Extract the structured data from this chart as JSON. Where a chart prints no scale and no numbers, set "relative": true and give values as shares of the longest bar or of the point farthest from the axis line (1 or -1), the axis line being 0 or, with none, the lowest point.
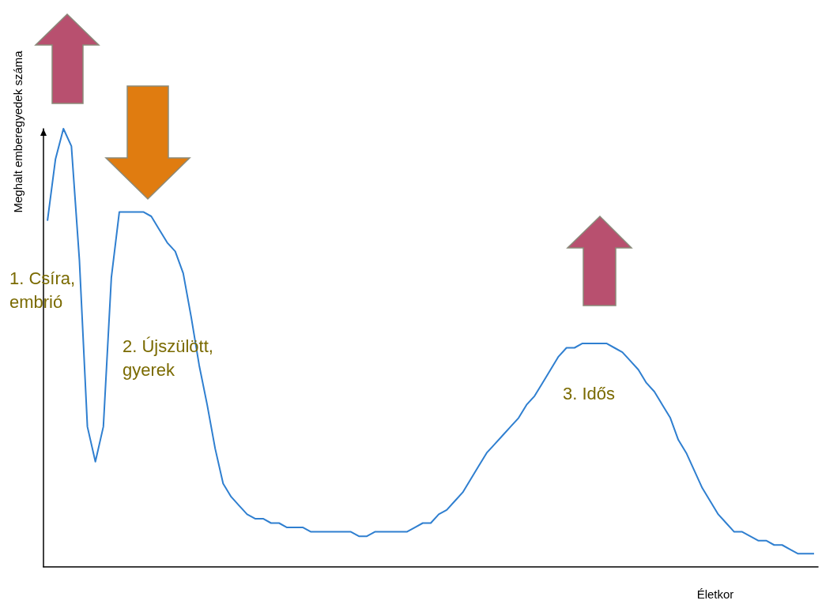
{
  "chart_data": {
    "type": "line",
    "relative": true,
    "xlabel": "Életkor",
    "ylabel": "Meghalt emberegyedek száma",
    "annotations": [
      "1. Csíra, embrió",
      "2. Újszülött, gyerek",
      "3. Idős"
    ],
    "categories": [
      null,
      null,
      null,
      null,
      null,
      null,
      null,
      null,
      null,
      null,
      null,
      null,
      null,
      null,
      null,
      null,
      null,
      null,
      null,
      null,
      null,
      null,
      null,
      null,
      null,
      null,
      null,
      null,
      null,
      null,
      null,
      null,
      null,
      null,
      null,
      null,
      null,
      null,
      null,
      null,
      null,
      null,
      null,
      null,
      null,
      null,
      null,
      null,
      null,
      null,
      null,
      null,
      null,
      null,
      null,
      null,
      null,
      null,
      null,
      null,
      null,
      null,
      null,
      null,
      null,
      null,
      null,
      null,
      null,
      null,
      null,
      null,
      null,
      null,
      null,
      null,
      null,
      null,
      null,
      null,
      null,
      null,
      null,
      null,
      null,
      null,
      null,
      null,
      null,
      null,
      null,
      null,
      null,
      null,
      null,
      null,
      null
    ],
    "series": [
      {
        "color": "#2f7fd0",
        "values": [
          0.79,
          0.93,
          1,
          0.96,
          0.7,
          0.32,
          0.24,
          0.32,
          0.66,
          0.81,
          0.81,
          0.81,
          0.81,
          0.8,
          0.77,
          0.74,
          0.72,
          0.67,
          0.57,
          0.46,
          0.37,
          0.27,
          0.19,
          0.16,
          0.14,
          0.12,
          0.11,
          0.11,
          0.1,
          0.1,
          0.09,
          0.09,
          0.09,
          0.08,
          0.08,
          0.08,
          0.08,
          0.08,
          0.08,
          0.07,
          0.07,
          0.08,
          0.08,
          0.08,
          0.08,
          0.08,
          0.09,
          0.1,
          0.1,
          0.12,
          0.13,
          0.15,
          0.17,
          0.2,
          0.23,
          0.26,
          0.28,
          0.3,
          0.32,
          0.34,
          0.37,
          0.39,
          0.42,
          0.45,
          0.48,
          0.5,
          0.5,
          0.51,
          0.51,
          0.51,
          0.51,
          0.5,
          0.49,
          0.47,
          0.45,
          0.42,
          0.4,
          0.37,
          0.34,
          0.29,
          0.26,
          0.22,
          0.18,
          0.15,
          0.12,
          0.1,
          0.08,
          0.08,
          0.07,
          0.06,
          0.06,
          0.05,
          0.05,
          0.04,
          0.03,
          0.03,
          0.03
        ]
      }
    ],
    "grid": false,
    "marker": "none",
    "line_style": "solid"
  }
}
